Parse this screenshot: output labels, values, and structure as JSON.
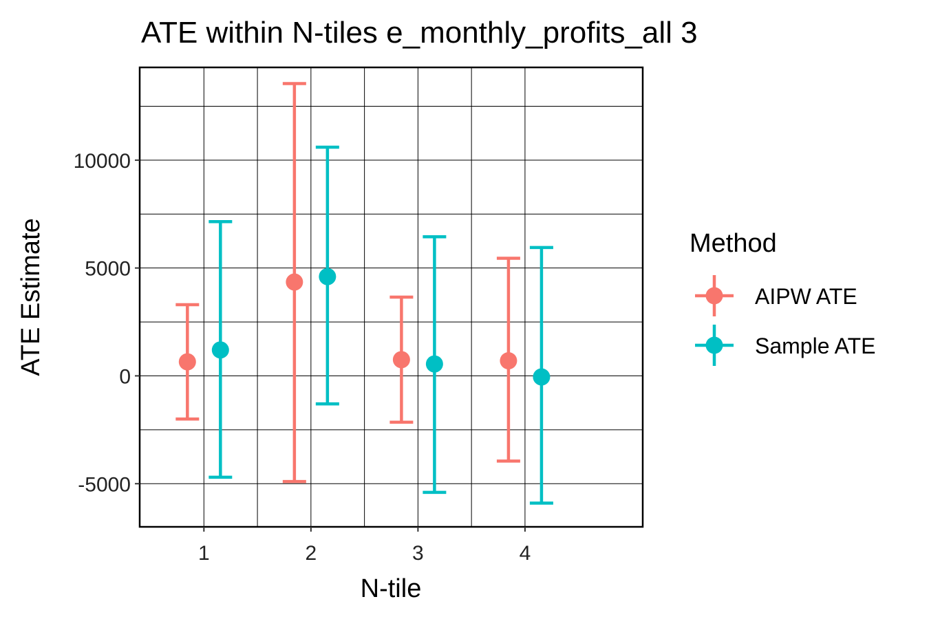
{
  "chart_data": {
    "type": "errorbar",
    "title": "ATE within N-tiles e_monthly_profits_all 3",
    "xlabel": "N-tile",
    "ylabel": "ATE Estimate",
    "categories": [
      "1",
      "2",
      "3",
      "4"
    ],
    "ylim": [
      -7000,
      14300
    ],
    "yticks": [
      -5000,
      0,
      5000,
      10000
    ],
    "grid": true,
    "legend": {
      "title": "Method",
      "position": "right"
    },
    "series": [
      {
        "name": "AIPW ATE",
        "color": "#F8766D",
        "estimate": [
          650,
          4350,
          750,
          700
        ],
        "lower": [
          -2000,
          -4900,
          -2150,
          -3950
        ],
        "upper": [
          3300,
          13550,
          3650,
          5450
        ]
      },
      {
        "name": "Sample ATE",
        "color": "#00BFC4",
        "estimate": [
          1200,
          4600,
          550,
          -50
        ],
        "lower": [
          -4700,
          -1300,
          -5400,
          -5900
        ],
        "upper": [
          7150,
          10600,
          6450,
          5950
        ]
      }
    ]
  }
}
